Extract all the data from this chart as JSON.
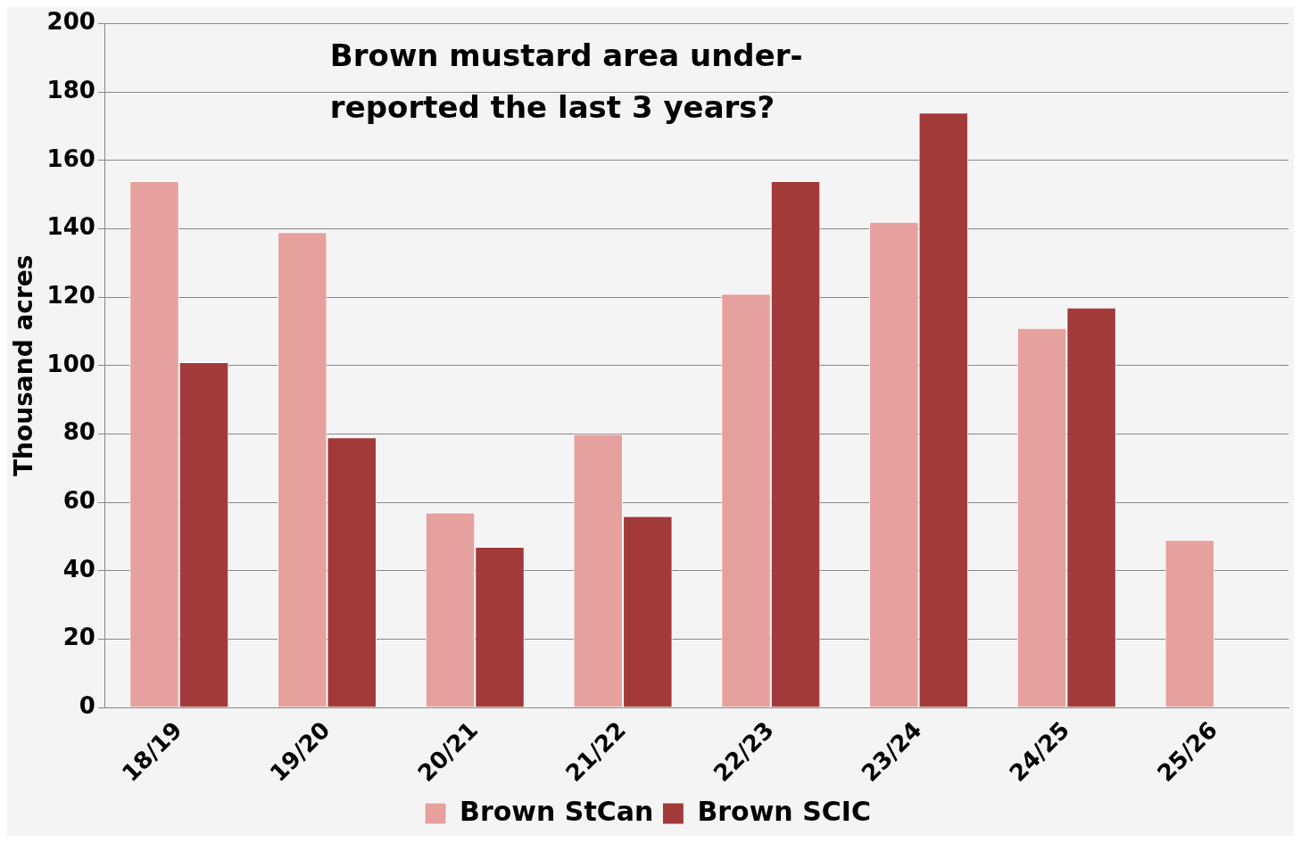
{
  "chart_data": {
    "type": "bar",
    "title": "Brown mustard area under-\nreported the last 3 years?",
    "ylabel": "Thousand acres",
    "categories": [
      "18/19",
      "19/20",
      "20/21",
      "21/22",
      "22/23",
      "23/24",
      "24/25",
      "25/26"
    ],
    "series": [
      {
        "name": "Brown StCan",
        "color": "#e6a19f",
        "values": [
          154,
          139,
          57,
          80,
          121,
          142,
          111,
          49
        ]
      },
      {
        "name": "Brown SCIC",
        "color": "#a33a3a",
        "values": [
          101,
          79,
          47,
          56,
          154,
          174,
          117,
          null
        ]
      }
    ],
    "ylim": [
      0,
      200
    ],
    "yticks": [
      0,
      20,
      40,
      60,
      80,
      100,
      120,
      140,
      160,
      180,
      200
    ],
    "grid": "y",
    "legend": "bottom"
  }
}
